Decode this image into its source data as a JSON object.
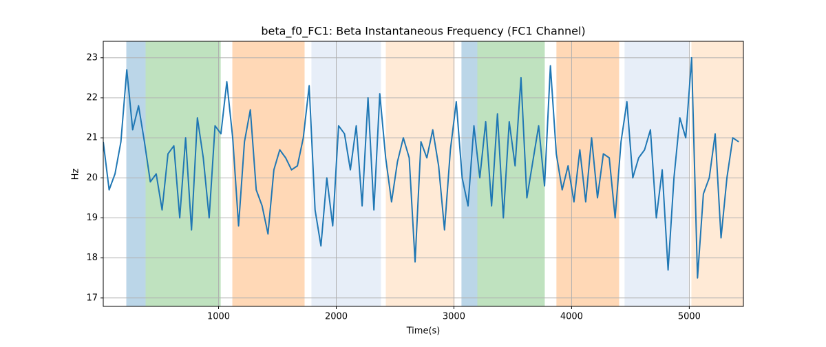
{
  "chart_data": {
    "type": "line",
    "title": "beta_f0_FC1: Beta Instantaneous Frequency (FC1 Channel)",
    "xlabel": "Time(s)",
    "ylabel": "Hz",
    "xlim": [
      20,
      5460
    ],
    "ylim": [
      16.79,
      23.41
    ],
    "xticks": [
      1000,
      2000,
      3000,
      4000,
      5000
    ],
    "yticks": [
      17,
      18,
      19,
      20,
      21,
      22,
      23
    ],
    "grid": true,
    "spans": [
      {
        "start": 216,
        "end": 380,
        "color": "rgba(31,119,180,0.3)"
      },
      {
        "start": 380,
        "end": 1018,
        "color": "rgba(44,160,44,0.3)"
      },
      {
        "start": 1117,
        "end": 1731,
        "color": "rgba(255,127,14,0.3)"
      },
      {
        "start": 1789,
        "end": 2380,
        "color": "rgba(174,199,232,0.3)"
      },
      {
        "start": 2421,
        "end": 3006,
        "color": "rgba(255,187,120,0.3)"
      },
      {
        "start": 3064,
        "end": 3199,
        "color": "rgba(31,119,180,0.3)"
      },
      {
        "start": 3199,
        "end": 3772,
        "color": "rgba(44,160,44,0.3)"
      },
      {
        "start": 3871,
        "end": 4404,
        "color": "rgba(255,127,14,0.3)"
      },
      {
        "start": 4450,
        "end": 4994,
        "color": "rgba(174,199,232,0.3)"
      },
      {
        "start": 5018,
        "end": 5460,
        "color": "rgba(255,187,120,0.3)"
      }
    ],
    "x": [
      20,
      70,
      120,
      170,
      220,
      270,
      320,
      370,
      420,
      470,
      520,
      570,
      620,
      670,
      720,
      770,
      820,
      870,
      920,
      970,
      1020,
      1070,
      1120,
      1170,
      1220,
      1270,
      1320,
      1370,
      1420,
      1470,
      1520,
      1570,
      1620,
      1670,
      1720,
      1770,
      1820,
      1870,
      1920,
      1970,
      2020,
      2070,
      2120,
      2170,
      2220,
      2270,
      2320,
      2370,
      2420,
      2470,
      2520,
      2570,
      2620,
      2670,
      2720,
      2770,
      2820,
      2870,
      2920,
      2970,
      3020,
      3070,
      3120,
      3170,
      3220,
      3270,
      3320,
      3370,
      3420,
      3470,
      3520,
      3570,
      3620,
      3670,
      3720,
      3770,
      3820,
      3870,
      3920,
      3970,
      4020,
      4070,
      4120,
      4170,
      4220,
      4270,
      4320,
      4370,
      4420,
      4470,
      4520,
      4570,
      4620,
      4670,
      4720,
      4770,
      4820,
      4870,
      4920,
      4970,
      5020,
      5070,
      5120,
      5170,
      5220,
      5270,
      5320,
      5370,
      5420
    ],
    "series": [
      {
        "color": "#1f77b4",
        "values": [
          20.9,
          19.7,
          20.1,
          20.9,
          22.7,
          21.2,
          21.8,
          20.9,
          19.9,
          20.1,
          19.2,
          20.6,
          20.8,
          19.0,
          21.0,
          18.7,
          21.5,
          20.5,
          19.0,
          21.3,
          21.1,
          22.4,
          21.0,
          18.8,
          20.9,
          21.7,
          19.7,
          19.3,
          18.6,
          20.2,
          20.7,
          20.5,
          20.2,
          20.3,
          21.0,
          22.3,
          19.2,
          18.3,
          20.0,
          18.8,
          21.3,
          21.1,
          20.2,
          21.3,
          19.3,
          22.0,
          19.2,
          22.1,
          20.5,
          19.4,
          20.4,
          21.0,
          20.5,
          17.9,
          20.9,
          20.5,
          21.2,
          20.3,
          18.7,
          20.7,
          21.9,
          20.0,
          19.3,
          21.3,
          20.0,
          21.4,
          19.3,
          21.6,
          19.0,
          21.4,
          20.3,
          22.5,
          19.5,
          20.4,
          21.3,
          19.8,
          22.8,
          20.6,
          19.7,
          20.3,
          19.4,
          20.7,
          19.4,
          21.0,
          19.5,
          20.6,
          20.5,
          19.0,
          20.9,
          21.9,
          20.0,
          20.5,
          20.7,
          21.2,
          19.0,
          20.2,
          17.7,
          20.0,
          21.5,
          21.0,
          23.0,
          17.5,
          19.6,
          20.0,
          21.1,
          18.5,
          20.0,
          21.0,
          20.9
        ]
      }
    ]
  }
}
